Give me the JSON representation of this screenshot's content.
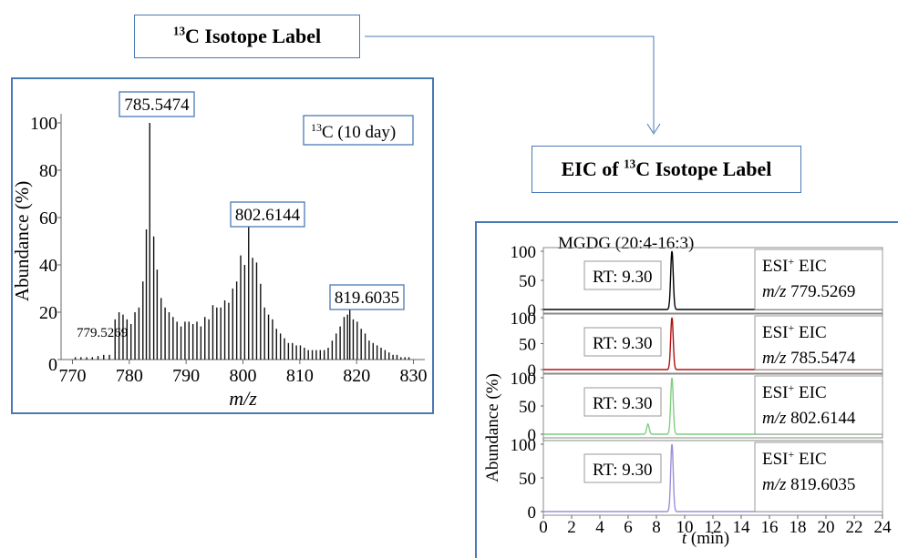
{
  "labels": {
    "isotope_label": {
      "sup": "13",
      "rest": "C Isotope Label"
    },
    "eic_label": {
      "pre": "EIC of ",
      "sup": "13",
      "rest": "C Isotope Label"
    }
  },
  "colors": {
    "frame_blue": "#4a78b5",
    "trace_1": "#000000",
    "trace_2": "#b01010",
    "trace_3": "#7fcf7f",
    "trace_4": "#9b8fd9"
  },
  "chart_data": [
    {
      "type": "bar",
      "ylabel": "Abundance (%)",
      "xlabel": "m/z",
      "xlim": [
        768,
        832
      ],
      "ylim": [
        0,
        100
      ],
      "xticks": [
        770,
        780,
        790,
        800,
        810,
        820,
        830
      ],
      "yticks": [
        0,
        20,
        40,
        60,
        80,
        100
      ],
      "annotation": {
        "sup": "13",
        "rest": "C (10 day)"
      },
      "peak_labels": [
        {
          "text": "779.5269",
          "x": 777.5,
          "y": 17,
          "boxed": false
        },
        {
          "text": "785.5474",
          "x": 783.6,
          "y": 100,
          "boxed": true
        },
        {
          "text": "802.6144",
          "x": 801.0,
          "y": 59,
          "boxed": true
        },
        {
          "text": "819.6035",
          "x": 818.8,
          "y": 25,
          "boxed": true
        }
      ],
      "peaks": [
        [
          770.5,
          1
        ],
        [
          771.5,
          1
        ],
        [
          772.5,
          1
        ],
        [
          773.5,
          1
        ],
        [
          774.5,
          1.5
        ],
        [
          775.5,
          2
        ],
        [
          776.5,
          2
        ],
        [
          777.5,
          17
        ],
        [
          778.2,
          20
        ],
        [
          778.9,
          19
        ],
        [
          779.6,
          17
        ],
        [
          780.3,
          15
        ],
        [
          781.0,
          20
        ],
        [
          781.7,
          22
        ],
        [
          782.4,
          33
        ],
        [
          783.0,
          55
        ],
        [
          783.6,
          100
        ],
        [
          784.3,
          52
        ],
        [
          784.9,
          38
        ],
        [
          785.6,
          26
        ],
        [
          786.3,
          22
        ],
        [
          787.0,
          20
        ],
        [
          787.7,
          18
        ],
        [
          788.4,
          16
        ],
        [
          789.1,
          14
        ],
        [
          789.8,
          16
        ],
        [
          790.5,
          16
        ],
        [
          791.2,
          15
        ],
        [
          791.9,
          16
        ],
        [
          792.6,
          14
        ],
        [
          793.3,
          18
        ],
        [
          794.0,
          17
        ],
        [
          794.7,
          23
        ],
        [
          795.4,
          22
        ],
        [
          796.1,
          22
        ],
        [
          796.8,
          25
        ],
        [
          797.5,
          24
        ],
        [
          798.2,
          30
        ],
        [
          798.9,
          33
        ],
        [
          799.6,
          44
        ],
        [
          800.3,
          40
        ],
        [
          801.0,
          59
        ],
        [
          801.7,
          43
        ],
        [
          802.4,
          41
        ],
        [
          803.1,
          32
        ],
        [
          803.8,
          22
        ],
        [
          804.5,
          19
        ],
        [
          805.2,
          17
        ],
        [
          805.9,
          13
        ],
        [
          806.6,
          11
        ],
        [
          807.3,
          9
        ],
        [
          808.0,
          7
        ],
        [
          808.7,
          7
        ],
        [
          809.4,
          6
        ],
        [
          810.1,
          6
        ],
        [
          810.8,
          5
        ],
        [
          811.5,
          4
        ],
        [
          812.2,
          4
        ],
        [
          812.9,
          4
        ],
        [
          813.6,
          4
        ],
        [
          814.3,
          4
        ],
        [
          815.0,
          5
        ],
        [
          815.7,
          8
        ],
        [
          816.4,
          11
        ],
        [
          817.1,
          14
        ],
        [
          817.8,
          18
        ],
        [
          818.4,
          19
        ],
        [
          818.8,
          25
        ],
        [
          819.4,
          17
        ],
        [
          820.1,
          16
        ],
        [
          820.8,
          13
        ],
        [
          821.5,
          11
        ],
        [
          822.2,
          8
        ],
        [
          822.9,
          7
        ],
        [
          823.6,
          6
        ],
        [
          824.3,
          5
        ],
        [
          825.0,
          4
        ],
        [
          825.7,
          3
        ],
        [
          826.4,
          2
        ],
        [
          827.1,
          2
        ],
        [
          827.8,
          1
        ],
        [
          828.5,
          1
        ],
        [
          829.2,
          1
        ]
      ]
    },
    {
      "type": "line",
      "compound": "MGDG (20:4-16:3)",
      "ylabel": "Abundance (%)",
      "xlabel": "t (min)",
      "xlim": [
        0,
        24
      ],
      "xticks": [
        0,
        2,
        4,
        6,
        8,
        10,
        12,
        14,
        16,
        18,
        20,
        22,
        24
      ],
      "yticks": [
        0,
        50,
        100
      ],
      "series": [
        {
          "rt_label": "RT: 9.30",
          "ion_label": "ESI+ EIC",
          "mz_label": "779.5269",
          "peaks": [
            {
              "center": 9.1,
              "height": 100,
              "width": 0.09
            }
          ]
        },
        {
          "rt_label": "RT: 9.30",
          "ion_label": "ESI+ EIC",
          "mz_label": "785.5474",
          "peaks": [
            {
              "center": 9.1,
              "height": 100,
              "width": 0.09
            }
          ]
        },
        {
          "rt_label": "RT: 9.30",
          "ion_label": "ESI+ EIC",
          "mz_label": "802.6144",
          "peaks": [
            {
              "center": 9.1,
              "height": 100,
              "width": 0.09
            },
            {
              "center": 7.4,
              "height": 18,
              "width": 0.09
            }
          ]
        },
        {
          "rt_label": "RT: 9.30",
          "ion_label": "ESI+ EIC",
          "mz_label": "819.6035",
          "peaks": [
            {
              "center": 9.1,
              "height": 100,
              "width": 0.09
            }
          ]
        }
      ]
    }
  ]
}
